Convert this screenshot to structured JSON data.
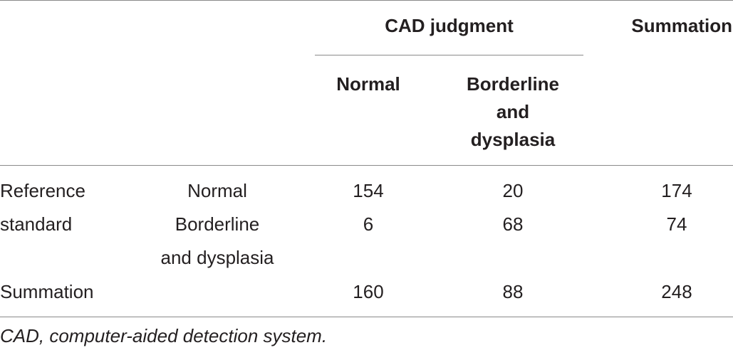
{
  "table": {
    "header": {
      "group_label": "CAD judgment",
      "summation_label": "Summation",
      "col_normal": "Normal",
      "col_borderline_lines": [
        "Borderline",
        "and",
        "dysplasia"
      ]
    },
    "row_group_lines": [
      "Reference",
      "standard"
    ],
    "rows": [
      {
        "label_lines": [
          "Normal"
        ],
        "normal": "154",
        "borderline": "20",
        "summation": "174"
      },
      {
        "label_lines": [
          "Borderline",
          "and dysplasia"
        ],
        "normal": "6",
        "borderline": "68",
        "summation": "74"
      }
    ],
    "total_row": {
      "label": "Summation",
      "normal": "160",
      "borderline": "88",
      "summation": "248"
    }
  },
  "footnote": "CAD, computer-aided detection system."
}
